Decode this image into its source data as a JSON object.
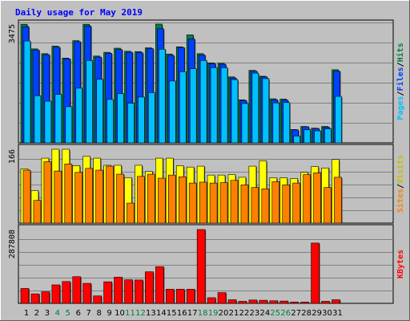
{
  "chart_data": {
    "type": "bar",
    "title": "Daily usage for May 2019",
    "days": [
      "1",
      "2",
      "3",
      "4",
      "5",
      "6",
      "7",
      "8",
      "9",
      "10",
      "11",
      "12",
      "13",
      "14",
      "15",
      "16",
      "17",
      "18",
      "19",
      "20",
      "21",
      "22",
      "23",
      "24",
      "25",
      "26",
      "27",
      "28",
      "29",
      "30",
      "31"
    ],
    "weekend_days": [
      "4",
      "5",
      "11",
      "12",
      "18",
      "19",
      "25",
      "26"
    ],
    "panels": [
      {
        "id": "pfh",
        "max_label": "3475",
        "max": 3475,
        "side_labels": [
          {
            "text": "Hits",
            "color": "#008040"
          },
          {
            "text": "/",
            "color": "#000000"
          },
          {
            "text": "Files",
            "color": "#0040ff"
          },
          {
            "text": "/",
            "color": "#000000"
          },
          {
            "text": "Pages",
            "color": "#00c0ff"
          }
        ],
        "series": [
          {
            "name": "Hits",
            "color": "#008040",
            "values": [
              3470,
              2750,
              2610,
              2830,
              2480,
              2990,
              3470,
              2540,
              2650,
              2770,
              2680,
              2670,
              2780,
              3500,
              2600,
              2810,
              3160,
              2610,
              2340,
              2330,
              1930,
              1260,
              2120,
              1950,
              1290,
              1280,
              390,
              480,
              430,
              480,
              2140
            ]
          },
          {
            "name": "Files",
            "color": "#0040ff",
            "values": [
              3400,
              2720,
              2580,
              2800,
              2460,
              2960,
              3420,
              2510,
              2620,
              2730,
              2650,
              2640,
              2760,
              3340,
              2560,
              2790,
              3040,
              2570,
              2320,
              2300,
              1900,
              1240,
              2100,
              1930,
              1260,
              1250,
              380,
              470,
              420,
              460,
              2100
            ]
          },
          {
            "name": "Pages",
            "color": "#00c0ff",
            "values": [
              2980,
              1380,
              1220,
              1420,
              1060,
              1600,
              2410,
              1860,
              1270,
              1440,
              1160,
              1340,
              1470,
              2740,
              1810,
              2080,
              2170,
              2410,
              2200,
              2200,
              1850,
              1150,
              2040,
              1880,
              1170,
              1180,
              200,
              380,
              350,
              410,
              1360
            ]
          }
        ]
      },
      {
        "id": "vs",
        "max_label": "166",
        "max": 166,
        "side_labels": [
          {
            "text": "Visits",
            "color": "#c0c000"
          },
          {
            "text": "/",
            "color": "#000000"
          },
          {
            "text": "Sites",
            "color": "#ff8000"
          }
        ],
        "series": [
          {
            "name": "Visits",
            "color": "#ffff00",
            "values": [
              122,
              73,
              146,
              172,
              166,
              129,
              150,
              146,
              130,
              130,
              102,
              130,
              116,
              146,
              146,
              129,
              126,
              128,
              108,
              108,
              109,
              103,
              128,
              140,
              102,
              102,
              100,
              114,
              127,
              124,
              143
            ]
          },
          {
            "name": "Sites",
            "color": "#ff8000",
            "values": [
              119,
              51,
              138,
              117,
              133,
              114,
              123,
              119,
              128,
              110,
              45,
              105,
              110,
              101,
              108,
              104,
              90,
              92,
              90,
              91,
              96,
              86,
              80,
              77,
              93,
              86,
              90,
              109,
              113,
              80,
              103
            ]
          }
        ]
      },
      {
        "id": "kb",
        "max_label": "287808",
        "max": 287808,
        "side_labels": [
          {
            "text": "KBytes",
            "color": "#ff0000"
          }
        ],
        "series": [
          {
            "name": "KBytes",
            "color": "#ff0000",
            "values": [
              58000,
              37000,
              45000,
              72000,
              85000,
              104000,
              78000,
              29000,
              84000,
              102000,
              92000,
              91000,
              123000,
              143000,
              55000,
              55000,
              55000,
              300000,
              22000,
              42000,
              14000,
              8000,
              13000,
              12000,
              10000,
              9000,
              5000,
              5000,
              235000,
              8000,
              14000
            ]
          }
        ]
      }
    ]
  }
}
